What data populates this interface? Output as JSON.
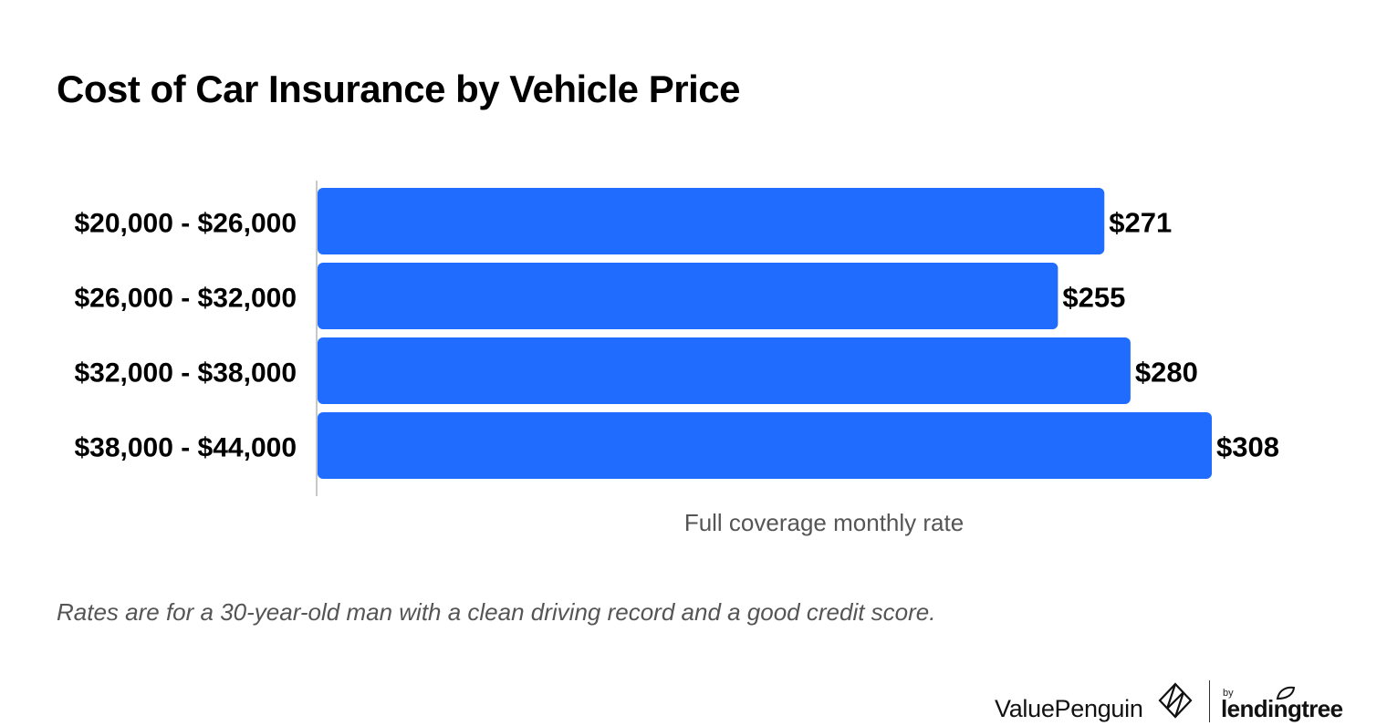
{
  "title": "Cost of Car Insurance by Vehicle Price",
  "caption": "Rates are for a 30-year-old man with a clean driving record and a good credit score.",
  "branding": {
    "valuepenguin": "ValuePenguin",
    "by": "by",
    "lendingtree": "lendingtree"
  },
  "colors": {
    "bar": "#206cff",
    "axis": "#c8c8c8",
    "xlabel": "#555555"
  },
  "chart_data": {
    "type": "bar",
    "orientation": "horizontal",
    "categories": [
      "$20,000 - $26,000",
      "$26,000 - $32,000",
      "$32,000 - $38,000",
      "$38,000 - $44,000"
    ],
    "values": [
      271,
      255,
      280,
      308
    ],
    "data_labels": [
      "$271",
      "$255",
      "$280",
      "$308"
    ],
    "title": "Cost of Car Insurance by Vehicle Price",
    "xlabel": "Full coverage monthly rate",
    "ylabel": "",
    "xlim": [
      0,
      308
    ],
    "grid": false,
    "legend": "none"
  }
}
